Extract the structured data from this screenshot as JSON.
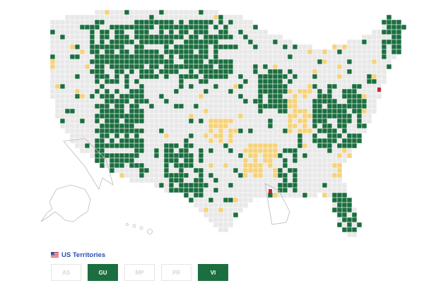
{
  "colors": {
    "background": "#ffffff",
    "county_default": "#e8e8e8",
    "county_border": "#ffffff",
    "state_border": "#b9b9b9",
    "green": "#1b6e3f",
    "yellow": "#f5d27a",
    "red": "#c22b2b",
    "territory_off_text": "#d6d6d6",
    "legend_blue": "#2a4db0"
  },
  "legend": {
    "flag_icon": "us-flag-icon",
    "title": "US Territories"
  },
  "territories": [
    {
      "code": "AS",
      "active": false
    },
    {
      "code": "GU",
      "active": true
    },
    {
      "code": "MP",
      "active": false
    },
    {
      "code": "PR",
      "active": false
    },
    {
      "code": "VI",
      "active": true
    }
  ]
}
